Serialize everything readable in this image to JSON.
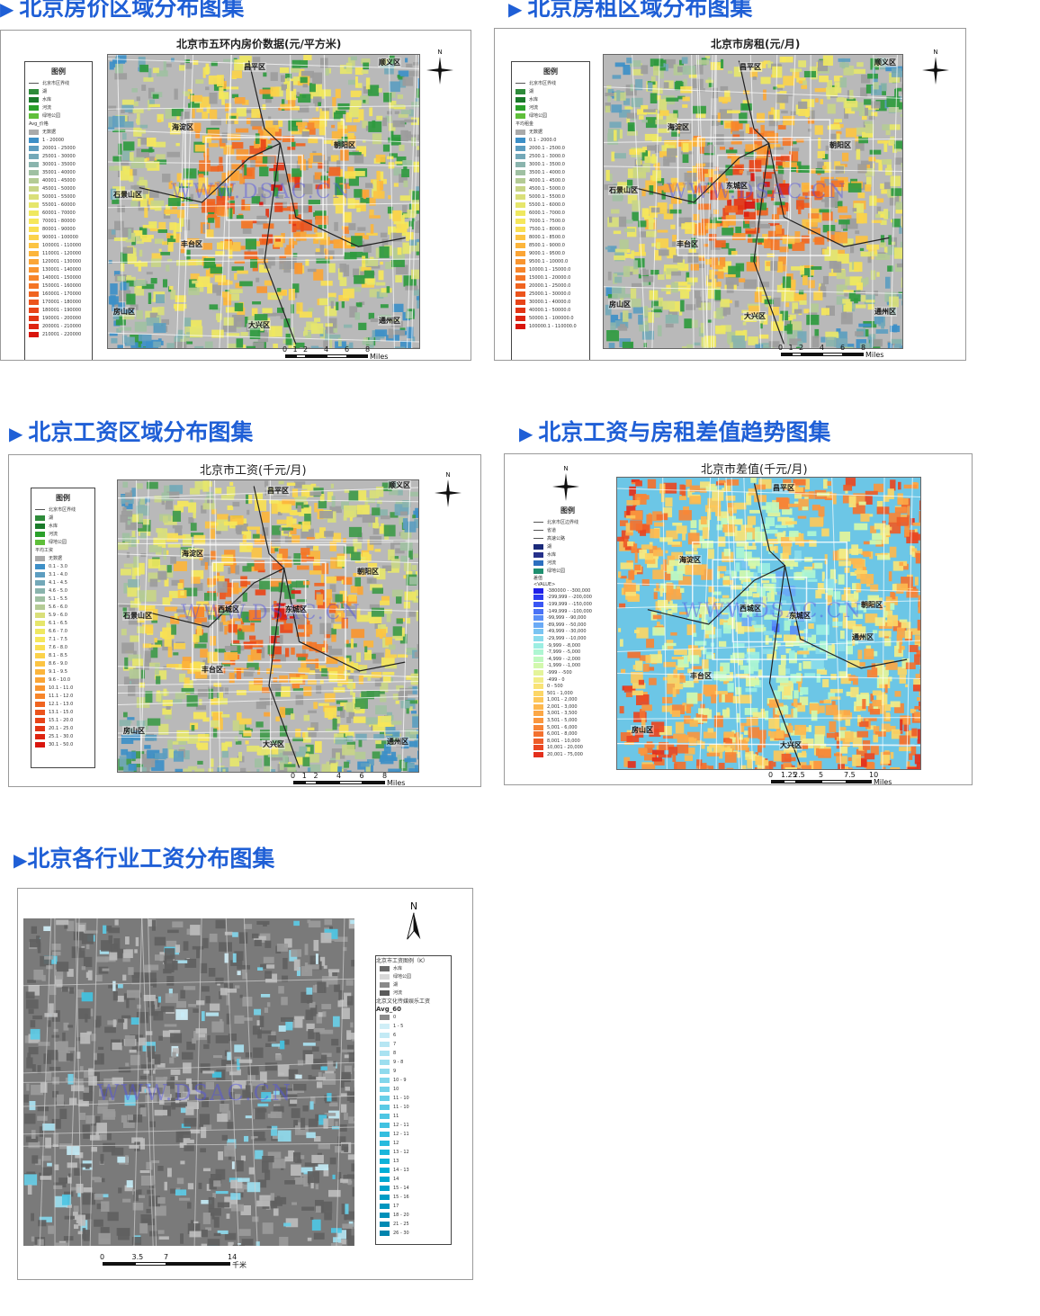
{
  "sections": [
    {
      "title": "北京房价区域分布图集"
    },
    {
      "title": "北京房租区域分布图集"
    },
    {
      "title": "北京工资区域分布图集"
    },
    {
      "title": "北京工资与房租差值趋势图集"
    },
    {
      "title": "北京各行业工资分布图集"
    }
  ],
  "watermark": "WWW.DSAC.CN",
  "north_label": "N",
  "map1": {
    "title": "北京市五环内房价数据(元/平方米)",
    "legend_title": "图例",
    "base_items": [
      "北京市区界线",
      "湖",
      "水库",
      "河流",
      "绿地公园"
    ],
    "field_label": "Avg_价格",
    "nodata": "无数据",
    "ranges": [
      "1 - 20000",
      "20001 - 25000",
      "25001 - 30000",
      "30001 - 35000",
      "35001 - 40000",
      "40001 - 45000",
      "45001 - 50000",
      "50001 - 55000",
      "55001 - 60000",
      "60001 - 70000",
      "70001 - 80000",
      "80001 - 90000",
      "90001 - 100000",
      "100001 - 110000",
      "110001 - 120000",
      "120001 - 130000",
      "130001 - 140000",
      "140001 - 150000",
      "150001 - 160000",
      "160001 - 170000",
      "170001 - 180000",
      "180001 - 190000",
      "190001 - 200000",
      "200001 - 210000",
      "210001 - 220000"
    ],
    "districts": [
      "昌平区",
      "海淀区",
      "朝阳区",
      "石景山区",
      "丰台区",
      "房山区",
      "大兴区",
      "顺义区",
      "通州区"
    ],
    "scale": [
      "0",
      "1",
      "2",
      "4",
      "6",
      "8"
    ],
    "scale_unit": "Miles"
  },
  "map2": {
    "title": "北京市房租(元/月)",
    "legend_title": "图例",
    "base_items": [
      "北京市区界线",
      "湖",
      "水库",
      "河流",
      "绿地公园"
    ],
    "field_label": "平均租金",
    "nodata": "无数据",
    "ranges": [
      "0.1 - 2000.0",
      "2000.1 - 2500.0",
      "2500.1 - 3000.0",
      "3000.1 - 3500.0",
      "3500.1 - 4000.0",
      "4000.1 - 4500.0",
      "4500.1 - 5000.0",
      "5000.1 - 5500.0",
      "5500.1 - 6000.0",
      "6000.1 - 7000.0",
      "7000.1 - 7500.0",
      "7500.1 - 8000.0",
      "8000.1 - 8500.0",
      "8500.1 - 9000.0",
      "9000.1 - 9500.0",
      "9500.1 - 10000.0",
      "10000.1 - 15000.0",
      "15000.1 - 20000.0",
      "20000.1 - 25000.0",
      "25000.1 - 30000.0",
      "30000.1 - 40000.0",
      "40000.1 - 50000.0",
      "50000.1 - 100000.0",
      "100000.1 - 110000.0"
    ],
    "districts": [
      "昌平区",
      "海淀区",
      "朝阳区",
      "石景山区",
      "丰台区",
      "房山区",
      "大兴区",
      "顺义区",
      "东城区",
      "通州区"
    ],
    "scale": [
      "0",
      "1",
      "2",
      "4",
      "6",
      "8"
    ],
    "scale_unit": "Miles"
  },
  "map3": {
    "title": "北京市工资(千元/月)",
    "legend_title": "图例",
    "base_items": [
      "北京市区界线",
      "湖",
      "水库",
      "河流",
      "绿地公园"
    ],
    "field_label": "平均工资",
    "nodata": "无数据",
    "ranges": [
      "0.1 - 3.0",
      "3.1 - 4.0",
      "4.1 - 4.5",
      "4.6 - 5.0",
      "5.1 - 5.5",
      "5.6 - 6.0",
      "5.9 - 6.0",
      "6.1 - 6.5",
      "6.6 - 7.0",
      "7.1 - 7.5",
      "7.6 - 8.0",
      "8.1 - 8.5",
      "8.6 - 9.0",
      "9.1 - 9.5",
      "9.6 - 10.0",
      "10.1 - 11.0",
      "11.1 - 12.0",
      "12.1 - 13.0",
      "13.1 - 15.0",
      "15.1 - 20.0",
      "20.1 - 25.0",
      "25.1 - 30.0",
      "30.1 - 50.0"
    ],
    "districts": [
      "昌平区",
      "海淀区",
      "朝阳区",
      "石景山区",
      "丰台区",
      "房山区",
      "大兴区",
      "顺义区",
      "通州区",
      "东城区",
      "西城区"
    ],
    "scale": [
      "0",
      "1",
      "2",
      "4",
      "6",
      "8"
    ],
    "scale_unit": "Miles"
  },
  "map4": {
    "title": "北京市差值(千元/月)",
    "legend_title": "图例",
    "base_items": [
      "北京市区边界线",
      "省道",
      "高速公路",
      "湖",
      "水库",
      "河流",
      "绿地公园"
    ],
    "field_label": "差值",
    "field_sub": "<VALUE>",
    "ranges": [
      "-380000 - -300,000",
      "-299,999 - -200,000",
      "-199,999 - -150,000",
      "-149,999 - -100,000",
      "-99,999 - -90,000",
      "-89,999 - -50,000",
      "-49,999 - -30,000",
      "-29,999 - -10,000",
      "-9,999 - -8,000",
      "-7,999 - -5,000",
      "-4,999 - -2,000",
      "-1,999 - -1,000",
      "-999 - -500",
      "-499 - 0",
      "0 - 500",
      "501 - 1,000",
      "1,001 - 2,000",
      "2,001 - 3,000",
      "3,001 - 3,500",
      "3,501 - 5,000",
      "5,001 - 6,000",
      "6,001 - 8,000",
      "8,001 - 10,000",
      "10,001 - 20,000",
      "20,001 - 75,000"
    ],
    "districts": [
      "昌平区",
      "海淀区",
      "朝阳区",
      "西城区",
      "东城区",
      "丰台区",
      "房山区",
      "大兴区",
      "通州区"
    ],
    "scale": [
      "0",
      "1.25",
      "2.5",
      "5",
      "7.5",
      "10"
    ],
    "scale_unit": "Miles"
  },
  "map5": {
    "legend_title": "北京市工资图例（K）",
    "base_items": [
      "水库",
      "绿地公园",
      "湖",
      "河流"
    ],
    "field_label": "北京文化传媒娱乐工资",
    "field_sub": "Avg_60",
    "ranges": [
      "0",
      "1 - 5",
      "6",
      "7",
      "8",
      "9 - 8",
      "9",
      "10 - 9",
      "10",
      "11 - 10",
      "11 - 10",
      "11",
      "12 - 11",
      "12 - 11",
      "12",
      "13 - 12",
      "13",
      "14 - 13",
      "14",
      "15 - 14",
      "15 - 16",
      "17",
      "18 - 20",
      "21 - 25",
      "26 - 30"
    ],
    "scale": [
      "0",
      "3.5",
      "7",
      "14"
    ],
    "scale_unit": "千米"
  },
  "colors": {
    "title_blue": "#1f5fd6",
    "price_ramp": [
      "#3d8fc7",
      "#5c9dc0",
      "#73a8b8",
      "#8ab4ad",
      "#9fc0a2",
      "#b4cb95",
      "#c8d587",
      "#d9df79",
      "#e6e66b",
      "#efe860",
      "#f6e75a",
      "#f9df52",
      "#fbd24a",
      "#fcc442",
      "#fcb53b",
      "#fba535",
      "#f9952f",
      "#f7852a",
      "#f47525",
      "#f06420",
      "#ec541c",
      "#e84418",
      "#e33414",
      "#de2410",
      "#d9150d"
    ],
    "diff_ramp": [
      "#1f1fe8",
      "#2b3bf0",
      "#3a56f4",
      "#4a72f6",
      "#5a8ff7",
      "#6aaaf6",
      "#7ac4f2",
      "#8bdcec",
      "#9ceee2",
      "#aef6d2",
      "#c0f9c0",
      "#d2f8ad",
      "#e4f49a",
      "#f2ed88",
      "#f9e376",
      "#fcd666",
      "#fdc85a",
      "#fdb84f",
      "#fca746",
      "#fa963e",
      "#f78436",
      "#f3712f",
      "#ee5c28",
      "#e94622",
      "#e32f1c"
    ],
    "salary_ramp": [
      "#8a8a8a",
      "#cfeef7",
      "#c3eaf5",
      "#b6e6f3",
      "#a9e2f1",
      "#9cdeef",
      "#8fdaed",
      "#82d6eb",
      "#75d2e9",
      "#68cee7",
      "#5bcae5",
      "#4ec6e3",
      "#41c2e1",
      "#34bedf",
      "#27badd",
      "#1ab6db",
      "#0db2d9",
      "#00aed7",
      "#00a8d1",
      "#00a2cb",
      "#009cc5",
      "#0096bf",
      "#0090b9",
      "#008ab3",
      "#0084ad"
    ]
  }
}
